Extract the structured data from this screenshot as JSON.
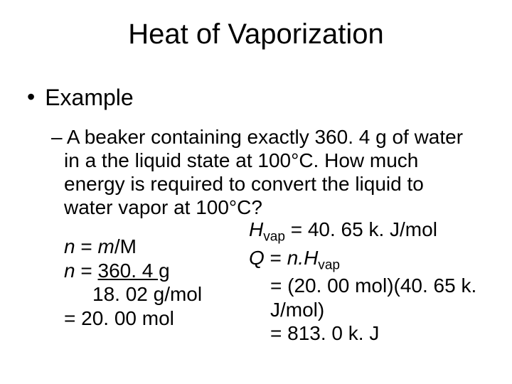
{
  "title": "Heat of Vaporization",
  "bullet": "Example",
  "problem_dash": "–",
  "problem_text": "A beaker containing exactly 360. 4 g of water in a the liquid state at 100°C.  How much energy is required to convert the liquid to water vapor at 100°C?",
  "left": {
    "l1_pre": "n",
    "l1_eq": " = ",
    "l1_m": "m",
    "l1_slash": "/",
    "l1_M": "M",
    "l2_pre": "n",
    "l2_eq": " = ",
    "l2_num": "360. 4 g",
    "l3_denom": "18. 02 g/mol",
    "l4": "= 20. 00 mol"
  },
  "right": {
    "r1_H": "H",
    "r1_sub": "vap",
    "r1_rest": " = 40. 65 k. J/mol",
    "r2_Q": "Q",
    "r2_eq": " = ",
    "r2_n": "n.",
    "r2_H": "H",
    "r2_sub": "vap",
    "r3": "= (20. 00 mol)(40. 65 k. J/mol)",
    "r4": "= 813. 0 k. J"
  },
  "colors": {
    "text": "#000000",
    "background": "#ffffff"
  },
  "fontsizes": {
    "title": 40,
    "bullet": 32,
    "body": 28
  }
}
